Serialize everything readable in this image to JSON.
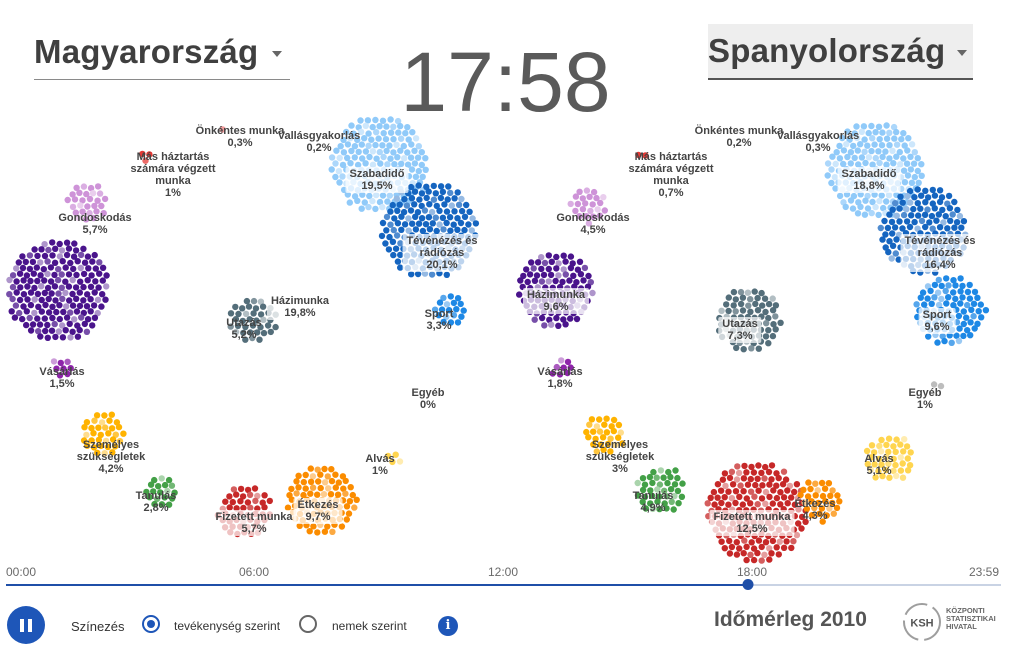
{
  "header": {
    "left_country": "Magyarország",
    "right_country": "Spanyolország",
    "clock": "17:58"
  },
  "colors": {
    "fizetett": "#c62828",
    "utazas": "#546e7a",
    "vasarlas": "#8e24aa",
    "hazimunka": "#4a148c",
    "gondoskodas": "#ce93d8",
    "mas_haztartas": "#e53935",
    "onkentes": "#ef9a9a",
    "vallas": "#8d6e63",
    "szabadido": "#90caf9",
    "teve": "#1565c0",
    "sport": "#1e88e5",
    "egyeb": "#bdbdbd",
    "alvas": "#ffd54f",
    "etkezes": "#fb8c00",
    "tanulas": "#43a047",
    "szemelyes": "#ffb300",
    "accent": "#1e56b8"
  },
  "left": {
    "activities": [
      {
        "key": "hazimunka",
        "label": "Házimunka",
        "pct": "19,8%",
        "boxed": true
      },
      {
        "key": "gondoskodas",
        "label": "Gondoskodás",
        "pct": "5,7%",
        "boxed": false
      },
      {
        "key": "mas_haztartas",
        "label": "Más háztartás számára végzett munka",
        "label_lines": [
          "Más háztartás",
          "számára végzett",
          "munka"
        ],
        "pct": "1%",
        "boxed": false
      },
      {
        "key": "onkentes",
        "label": "Önkéntes munka",
        "pct": "0,3%",
        "boxed": false
      },
      {
        "key": "vallas",
        "label": "Vallásgyakorlás",
        "pct": "0,2%",
        "boxed": false
      },
      {
        "key": "szabadido",
        "label": "Szabadidő",
        "pct": "19,5%",
        "boxed": true
      },
      {
        "key": "teve",
        "label": "Tévénézés és rádiózás",
        "label_lines": [
          "Tévénézés és",
          "rádiózás"
        ],
        "pct": "20,1%",
        "boxed": true
      },
      {
        "key": "sport",
        "label": "Sport",
        "pct": "3,3%",
        "boxed": false
      },
      {
        "key": "utazas",
        "label": "Utazás",
        "pct": "5,2%",
        "boxed": false
      },
      {
        "key": "vasarlas",
        "label": "Vásárlás",
        "pct": "1,5%",
        "boxed": false
      },
      {
        "key": "egyeb",
        "label": "Egyéb",
        "pct": "0%",
        "boxed": false
      },
      {
        "key": "szemelyes",
        "label": "Személyes szükségletek",
        "label_lines": [
          "Személyes",
          "szükségletek"
        ],
        "pct": "4,2%",
        "boxed": false
      },
      {
        "key": "alvas",
        "label": "Alvás",
        "pct": "1%",
        "boxed": false
      },
      {
        "key": "tanulas",
        "label": "Tanulás",
        "pct": "2,8%",
        "boxed": false
      },
      {
        "key": "fizetett",
        "label": "Fizetett munka",
        "pct": "5,7%",
        "boxed": true
      },
      {
        "key": "etkezes",
        "label": "Étkezés",
        "pct": "9,7%",
        "boxed": true
      }
    ]
  },
  "right": {
    "activities": [
      {
        "key": "hazimunka",
        "label": "Házimunka",
        "pct": "9,6%",
        "boxed": true
      },
      {
        "key": "gondoskodas",
        "label": "Gondoskodás",
        "pct": "4,5%",
        "boxed": false
      },
      {
        "key": "mas_haztartas",
        "label": "Más háztartás számára végzett munka",
        "label_lines": [
          "Más háztartás",
          "számára végzett",
          "munka"
        ],
        "pct": "0,7%",
        "boxed": false
      },
      {
        "key": "onkentes",
        "label": "Önkéntes munka",
        "pct": "0,2%",
        "boxed": false
      },
      {
        "key": "vallas",
        "label": "Vallásgyakorlás",
        "pct": "0,3%",
        "boxed": false
      },
      {
        "key": "szabadido",
        "label": "Szabadidő",
        "pct": "18,8%",
        "boxed": true
      },
      {
        "key": "teve",
        "label": "Tévénézés és rádiózás",
        "label_lines": [
          "Tévénézés és",
          "rádiózás"
        ],
        "pct": "16,4%",
        "boxed": true
      },
      {
        "key": "sport",
        "label": "Sport",
        "pct": "9,6%",
        "boxed": true
      },
      {
        "key": "utazas",
        "label": "Utazás",
        "pct": "7,3%",
        "boxed": true
      },
      {
        "key": "vasarlas",
        "label": "Vásárlás",
        "pct": "1,8%",
        "boxed": false
      },
      {
        "key": "egyeb",
        "label": "Egyéb",
        "pct": "1%",
        "boxed": false
      },
      {
        "key": "szemelyes",
        "label": "Személyes szükségletek",
        "label_lines": [
          "Személyes",
          "szükségletek"
        ],
        "pct": "3%",
        "boxed": false
      },
      {
        "key": "alvas",
        "label": "Alvás",
        "pct": "5,1%",
        "boxed": false
      },
      {
        "key": "tanulas",
        "label": "Tanulás",
        "pct": "4,9%",
        "boxed": false
      },
      {
        "key": "fizetett",
        "label": "Fizetett munka",
        "pct": "12,5%",
        "boxed": true
      },
      {
        "key": "etkezes",
        "label": "Étkezés",
        "pct": "4,3%",
        "boxed": false
      }
    ]
  },
  "timeline": {
    "ticks": [
      "00:00",
      "06:00",
      "12:00",
      "18:00",
      "23:59"
    ],
    "progress": 0.746
  },
  "controls": {
    "play_state": "playing",
    "coloring_label": "Színezés",
    "option_activity": "tevékenység szerint",
    "option_gender": "nemek szerint",
    "selected_option": "activity",
    "info_symbol": "i"
  },
  "brand": {
    "title": "Időmérleg 2010",
    "logo_abbrev": "KSH",
    "logo_text_lines": [
      "KÖZPONTI",
      "STATISZTIKAI",
      "HIVATAL"
    ]
  }
}
